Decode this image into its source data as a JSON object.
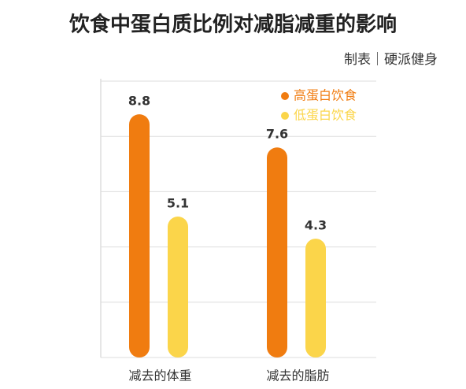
{
  "chart_data": {
    "type": "bar",
    "title": "饮食中蛋白质比例对减脂减重的影响",
    "subtitle": "制表｜硬派健身",
    "categories": [
      "减去的体重",
      "减去的脂肪"
    ],
    "series": [
      {
        "name": "高蛋白饮食",
        "color": "#f07c10",
        "values": [
          8.8,
          7.6
        ]
      },
      {
        "name": "低蛋白饮食",
        "color": "#fbd54a",
        "values": [
          5.1,
          4.3
        ]
      }
    ],
    "ylim": [
      0,
      10
    ],
    "yticks": [
      0,
      2,
      4,
      6,
      8,
      10
    ],
    "grid": true,
    "legend": "top-right"
  }
}
